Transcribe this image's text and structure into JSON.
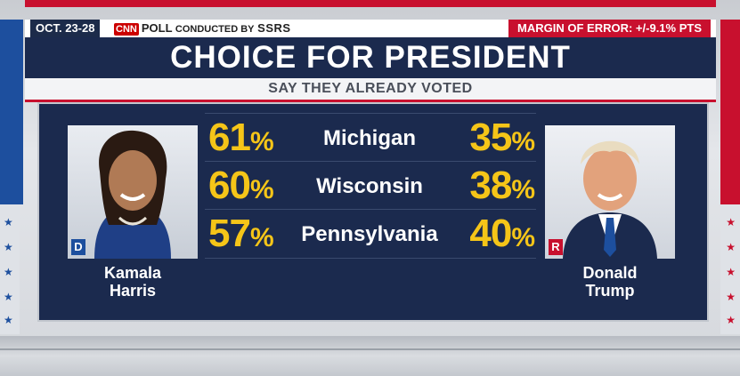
{
  "header": {
    "dates": "OCT. 23-28",
    "poll_network": "CNN",
    "poll_word": "POLL",
    "poll_conducted_by": "CONDUCTED BY",
    "poll_firm": "SSRS",
    "margin_of_error": "MARGIN OF ERROR: +/-9.1% PTS"
  },
  "title": "CHOICE FOR PRESIDENT",
  "subtitle": "SAY THEY ALREADY VOTED",
  "candidates": {
    "left": {
      "first": "Kamala",
      "last": "Harris",
      "party": "D"
    },
    "right": {
      "first": "Donald",
      "last": "Trump",
      "party": "R"
    }
  },
  "results": [
    {
      "state": "Michigan",
      "harris": "61",
      "trump": "35"
    },
    {
      "state": "Wisconsin",
      "harris": "60",
      "trump": "38"
    },
    {
      "state": "Pennsylvania",
      "harris": "57",
      "trump": "40"
    }
  ],
  "percent_sign": "%",
  "colors": {
    "navy": "#1b2a4e",
    "yellow": "#f5c518",
    "red": "#c8102e",
    "blue": "#1d4f9e"
  },
  "icons": [
    "star-icon"
  ]
}
